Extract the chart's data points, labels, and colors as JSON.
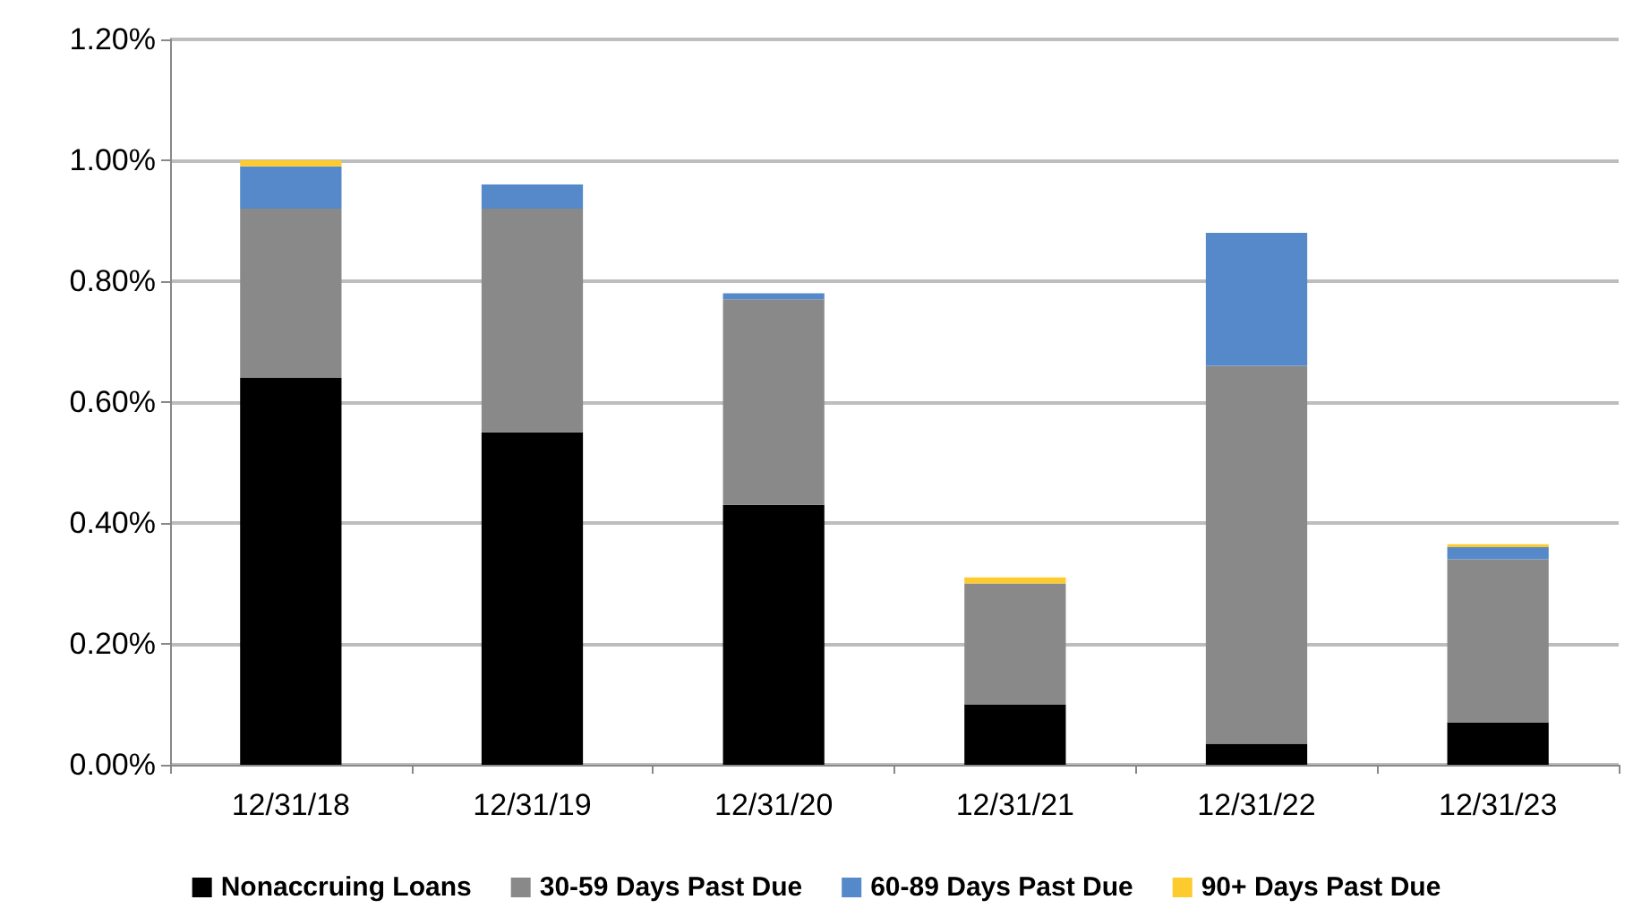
{
  "chart_data": {
    "type": "bar",
    "stacked": true,
    "categories": [
      "12/31/18",
      "12/31/19",
      "12/31/20",
      "12/31/21",
      "12/31/22",
      "12/31/23"
    ],
    "series": [
      {
        "name": "Nonaccruing Loans",
        "color": "#000000",
        "values": [
          0.64,
          0.55,
          0.43,
          0.1,
          0.035,
          0.07
        ]
      },
      {
        "name": "30-59 Days Past Due",
        "color": "#898989",
        "values": [
          0.28,
          0.37,
          0.34,
          0.2,
          0.625,
          0.27
        ]
      },
      {
        "name": "60-89 Days Past Due",
        "color": "#5589c9",
        "values": [
          0.07,
          0.04,
          0.01,
          0,
          0.22,
          0.02
        ]
      },
      {
        "name": "90+ Days Past Due",
        "color": "#fecb2f",
        "values": [
          0.01,
          0,
          0,
          0.01,
          0,
          0.005
        ]
      }
    ],
    "ylim": [
      0,
      1.2
    ],
    "yticks": [
      {
        "value": 0,
        "label": "0.00%"
      },
      {
        "value": 0.2,
        "label": "0.20%"
      },
      {
        "value": 0.4,
        "label": "0.40%"
      },
      {
        "value": 0.6,
        "label": "0.60%"
      },
      {
        "value": 0.8,
        "label": "0.80%"
      },
      {
        "value": 1,
        "label": "1.00%"
      },
      {
        "value": 1.2,
        "label": "1.20%"
      }
    ],
    "grid": "y",
    "legend": "bottom"
  }
}
